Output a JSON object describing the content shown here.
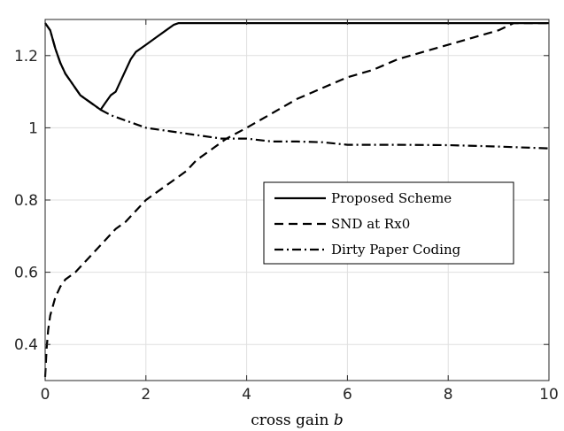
{
  "chart_data": {
    "type": "line",
    "title": "",
    "xlabel": "cross gain",
    "xlabel_symbol": "b",
    "ylabel": "",
    "xlim": [
      0,
      10
    ],
    "ylim": [
      0.3,
      1.3
    ],
    "xticks": [
      "0",
      "2",
      "4",
      "6",
      "8",
      "10"
    ],
    "yticks": [
      "0.4",
      "0.6",
      "0.8",
      "1",
      "1.2"
    ],
    "grid": true,
    "legend_position": "center-right",
    "series": [
      {
        "name": "Proposed Scheme",
        "style": "solid",
        "color": "#000000",
        "points": [
          [
            0,
            1.29
          ],
          [
            0.1,
            1.27
          ],
          [
            0.2,
            1.22
          ],
          [
            0.3,
            1.18
          ],
          [
            0.4,
            1.15
          ],
          [
            0.5,
            1.13
          ],
          [
            0.6,
            1.11
          ],
          [
            0.7,
            1.09
          ],
          [
            0.8,
            1.08
          ],
          [
            0.9,
            1.07
          ],
          [
            1.0,
            1.06
          ],
          [
            1.1,
            1.05
          ],
          [
            1.2,
            1.07
          ],
          [
            1.3,
            1.09
          ],
          [
            1.4,
            1.1
          ],
          [
            1.5,
            1.13
          ],
          [
            1.6,
            1.16
          ],
          [
            1.7,
            1.19
          ],
          [
            1.8,
            1.21
          ],
          [
            2.0,
            1.23
          ],
          [
            2.2,
            1.25
          ],
          [
            2.4,
            1.27
          ],
          [
            2.55,
            1.285
          ],
          [
            2.65,
            1.29
          ],
          [
            10,
            1.29
          ]
        ]
      },
      {
        "name": "SND at Rx0",
        "style": "dashed",
        "color": "#000000",
        "points": [
          [
            0.0,
            0.31
          ],
          [
            0.03,
            0.39
          ],
          [
            0.06,
            0.44
          ],
          [
            0.1,
            0.48
          ],
          [
            0.2,
            0.53
          ],
          [
            0.3,
            0.56
          ],
          [
            0.4,
            0.58
          ],
          [
            0.6,
            0.6
          ],
          [
            0.8,
            0.63
          ],
          [
            1.0,
            0.66
          ],
          [
            1.2,
            0.69
          ],
          [
            1.4,
            0.72
          ],
          [
            1.6,
            0.74
          ],
          [
            1.8,
            0.77
          ],
          [
            2.0,
            0.8
          ],
          [
            2.2,
            0.82
          ],
          [
            2.5,
            0.85
          ],
          [
            2.8,
            0.88
          ],
          [
            3.0,
            0.91
          ],
          [
            3.3,
            0.94
          ],
          [
            3.6,
            0.97
          ],
          [
            4.0,
            1.0
          ],
          [
            4.5,
            1.04
          ],
          [
            5.0,
            1.08
          ],
          [
            5.5,
            1.11
          ],
          [
            6.0,
            1.14
          ],
          [
            6.5,
            1.16
          ],
          [
            7.0,
            1.19
          ],
          [
            7.5,
            1.21
          ],
          [
            8.0,
            1.23
          ],
          [
            8.5,
            1.25
          ],
          [
            9.0,
            1.27
          ],
          [
            9.3,
            1.29
          ],
          [
            10.0,
            1.29
          ]
        ]
      },
      {
        "name": "Dirty Paper Coding",
        "style": "dashdot",
        "color": "#000000",
        "points": [
          [
            0,
            1.29
          ],
          [
            0.1,
            1.27
          ],
          [
            0.2,
            1.22
          ],
          [
            0.3,
            1.18
          ],
          [
            0.4,
            1.15
          ],
          [
            0.5,
            1.13
          ],
          [
            0.6,
            1.11
          ],
          [
            0.7,
            1.09
          ],
          [
            0.8,
            1.08
          ],
          [
            0.9,
            1.07
          ],
          [
            1.0,
            1.06
          ],
          [
            1.1,
            1.05
          ],
          [
            1.3,
            1.035
          ],
          [
            1.5,
            1.025
          ],
          [
            1.8,
            1.01
          ],
          [
            2.0,
            1.0
          ],
          [
            2.5,
            0.99
          ],
          [
            3.0,
            0.98
          ],
          [
            3.5,
            0.97
          ],
          [
            4.0,
            0.97
          ],
          [
            4.5,
            0.962
          ],
          [
            5.0,
            0.962
          ],
          [
            5.5,
            0.96
          ],
          [
            6.0,
            0.953
          ],
          [
            7.0,
            0.953
          ],
          [
            8.0,
            0.952
          ],
          [
            9.0,
            0.948
          ],
          [
            10.0,
            0.943
          ]
        ]
      }
    ]
  }
}
